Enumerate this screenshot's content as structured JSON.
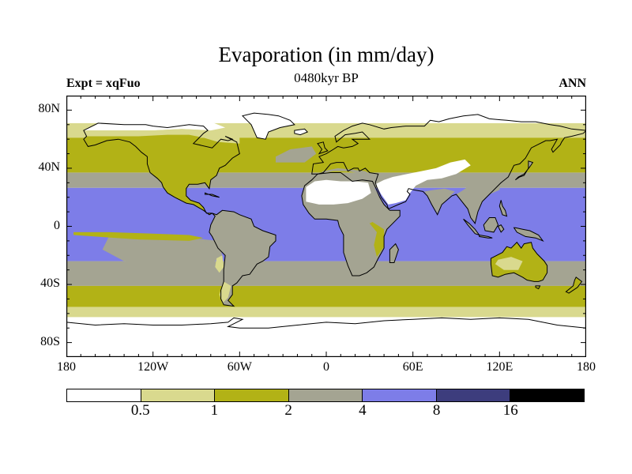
{
  "header": {
    "title": "Evaporation (in mm/day)",
    "subtitle": "0480kyr BP",
    "experiment_label": "Expt = xqFuo",
    "season_label": "ANN"
  },
  "chart_data": {
    "type": "heatmap",
    "subtype": "filled-contour-world-map",
    "title": "Evaporation (in mm/day)",
    "subtitle": "0480kyr BP",
    "experiment": "xqFuo",
    "season": "ANN",
    "projection": "equirectangular",
    "lon_range": [
      -180,
      180
    ],
    "lat_range": [
      -90,
      90
    ],
    "units": "mm/day",
    "x_ticks": [
      {
        "lon": -180,
        "label": "180"
      },
      {
        "lon": -120,
        "label": "120W"
      },
      {
        "lon": -60,
        "label": "60W"
      },
      {
        "lon": 0,
        "label": "0"
      },
      {
        "lon": 60,
        "label": "60E"
      },
      {
        "lon": 120,
        "label": "120E"
      },
      {
        "lon": 180,
        "label": "180"
      }
    ],
    "y_ticks": [
      {
        "lat": 80,
        "label": "80N"
      },
      {
        "lat": 40,
        "label": "40N"
      },
      {
        "lat": 0,
        "label": "0"
      },
      {
        "lat": -40,
        "label": "40S"
      },
      {
        "lat": -80,
        "label": "80S"
      }
    ],
    "minor_tick_deg": 10,
    "x_major_tick_deg": 60,
    "y_major_tick_deg": 40,
    "colorbar": {
      "boundary_labels": [
        "0.5",
        "1",
        "2",
        "4",
        "8",
        "16"
      ],
      "segment_colors": [
        "white",
        "pale",
        "olive",
        "gray",
        "blue",
        "navy",
        "black"
      ],
      "palette": {
        "white": "#ffffff",
        "pale": "#d9d98e",
        "olive": "#b2b216",
        "gray": "#a4a492",
        "blue": "#7d7de8",
        "navy": "#3d3d7d",
        "black": "#000000"
      }
    },
    "zonal_bands": [
      {
        "lat_from": 90,
        "lat_to": 71,
        "color": "white"
      },
      {
        "lat_from": 71,
        "lat_to": 61,
        "color": "pale"
      },
      {
        "lat_from": 61,
        "lat_to": 37,
        "color": "olive"
      },
      {
        "lat_from": 37,
        "lat_to": 26.5,
        "color": "gray"
      },
      {
        "lat_from": 26.5,
        "lat_to": -24,
        "color": "blue"
      },
      {
        "lat_from": -24,
        "lat_to": -41,
        "color": "gray"
      },
      {
        "lat_from": -41,
        "lat_to": -55.5,
        "color": "olive"
      },
      {
        "lat_from": -55.5,
        "lat_to": -62.5,
        "color": "pale"
      },
      {
        "lat_from": -62.5,
        "lat_to": -90,
        "color": "white"
      }
    ],
    "ocean_features": [
      {
        "name": "se-pacific-gray",
        "color": "gray",
        "polygon": [
          [
            -150,
            -6
          ],
          [
            -120,
            -6
          ],
          [
            -95,
            -8
          ],
          [
            -75,
            -10
          ],
          [
            -72,
            -20
          ],
          [
            -80,
            -26
          ],
          [
            -110,
            -27
          ],
          [
            -140,
            -24
          ],
          [
            -155,
            -16
          ],
          [
            -150,
            -6
          ]
        ]
      },
      {
        "name": "equatorial-pacific-olive-tongue",
        "color": "olive",
        "polygon": [
          [
            -175,
            -4
          ],
          [
            -150,
            -4
          ],
          [
            -120,
            -5
          ],
          [
            -95,
            -6
          ],
          [
            -85,
            -8
          ],
          [
            -95,
            -10
          ],
          [
            -130,
            -9
          ],
          [
            -160,
            -7
          ],
          [
            -175,
            -6
          ],
          [
            -175,
            -4
          ]
        ]
      },
      {
        "name": "north-atlantic-gray",
        "color": "gray",
        "polygon": [
          [
            -35,
            44
          ],
          [
            -15,
            44
          ],
          [
            -7,
            50
          ],
          [
            -10,
            55
          ],
          [
            -25,
            53
          ],
          [
            -35,
            48
          ],
          [
            -35,
            44
          ]
        ]
      },
      {
        "name": "chile-coast-pale",
        "color": "pale",
        "polygon": [
          [
            -76,
            -22
          ],
          [
            -72,
            -20
          ],
          [
            -71,
            -28
          ],
          [
            -74,
            -32
          ],
          [
            -77,
            -28
          ],
          [
            -76,
            -22
          ]
        ]
      }
    ],
    "regional_patches": [
      {
        "name": "sahara-white",
        "color": "white",
        "polygon": [
          [
            -14,
            17
          ],
          [
            -14,
            27
          ],
          [
            -8,
            31
          ],
          [
            0,
            32
          ],
          [
            10,
            31
          ],
          [
            20,
            31
          ],
          [
            29,
            30
          ],
          [
            31,
            23
          ],
          [
            25,
            19
          ],
          [
            15,
            16
          ],
          [
            5,
            15
          ],
          [
            -5,
            15
          ],
          [
            -14,
            17
          ]
        ]
      },
      {
        "name": "arabia-central-asia-white",
        "color": "white",
        "polygon": [
          [
            34,
            29
          ],
          [
            38,
            22
          ],
          [
            43,
            15
          ],
          [
            48,
            16
          ],
          [
            55,
            18
          ],
          [
            58,
            23
          ],
          [
            62,
            28
          ],
          [
            70,
            32
          ],
          [
            80,
            33
          ],
          [
            90,
            36
          ],
          [
            100,
            42
          ],
          [
            96,
            46
          ],
          [
            86,
            44
          ],
          [
            76,
            40
          ],
          [
            66,
            38
          ],
          [
            56,
            36
          ],
          [
            46,
            34
          ],
          [
            40,
            32
          ],
          [
            34,
            29
          ]
        ]
      },
      {
        "name": "east-africa-olive",
        "color": "olive",
        "polygon": [
          [
            32,
            3
          ],
          [
            40,
            -2
          ],
          [
            40,
            -14
          ],
          [
            35,
            -21
          ],
          [
            33,
            -13
          ],
          [
            35,
            -4
          ],
          [
            30,
            2
          ],
          [
            32,
            3
          ]
        ]
      },
      {
        "name": "patagonia-pale",
        "color": "pale",
        "polygon": [
          [
            -71,
            -38
          ],
          [
            -66,
            -41
          ],
          [
            -68,
            -49
          ],
          [
            -72,
            -53
          ],
          [
            -74,
            -47
          ],
          [
            -72,
            -40
          ],
          [
            -71,
            -38
          ]
        ]
      },
      {
        "name": "australia-interior-pale",
        "color": "pale",
        "polygon": [
          [
            119,
            -23
          ],
          [
            128,
            -21
          ],
          [
            136,
            -24
          ],
          [
            133,
            -30
          ],
          [
            123,
            -30
          ],
          [
            117,
            -26
          ],
          [
            119,
            -23
          ]
        ]
      },
      {
        "name": "india-gray",
        "color": "gray",
        "polygon": [
          [
            77,
            9
          ],
          [
            73,
            15
          ],
          [
            70,
            21
          ],
          [
            68,
            24
          ],
          [
            74,
            25
          ],
          [
            82,
            26
          ],
          [
            89,
            24
          ],
          [
            86,
            21
          ],
          [
            80,
            15
          ],
          [
            77,
            9
          ]
        ]
      },
      {
        "name": "southeast-asia-gray",
        "color": "gray",
        "polygon": [
          [
            90,
            22
          ],
          [
            94,
            17
          ],
          [
            98,
            12
          ],
          [
            100,
            5
          ],
          [
            103,
            3
          ],
          [
            105,
            10
          ],
          [
            108,
            17
          ],
          [
            113,
            22
          ],
          [
            120,
            25
          ],
          [
            121,
            30
          ],
          [
            110,
            31
          ],
          [
            100,
            29
          ],
          [
            95,
            25
          ],
          [
            90,
            22
          ]
        ]
      },
      {
        "name": "north-america-subarctic-pale",
        "color": "pale",
        "polygon": [
          [
            -168,
            62
          ],
          [
            -150,
            62
          ],
          [
            -130,
            62
          ],
          [
            -110,
            63
          ],
          [
            -95,
            63
          ],
          [
            -85,
            61
          ],
          [
            -75,
            58
          ],
          [
            -60,
            57
          ],
          [
            -60,
            62
          ],
          [
            -80,
            66
          ],
          [
            -100,
            67
          ],
          [
            -120,
            66
          ],
          [
            -140,
            66
          ],
          [
            -160,
            66
          ],
          [
            -168,
            66
          ],
          [
            -168,
            62
          ]
        ]
      },
      {
        "name": "north-america-arctic-white",
        "color": "white",
        "polygon": [
          [
            -168,
            66
          ],
          [
            -160,
            66
          ],
          [
            -140,
            66
          ],
          [
            -120,
            66
          ],
          [
            -100,
            67
          ],
          [
            -80,
            66
          ],
          [
            -70,
            68
          ],
          [
            -80,
            72
          ],
          [
            -100,
            73
          ],
          [
            -120,
            72
          ],
          [
            -140,
            71
          ],
          [
            -158,
            71
          ],
          [
            -168,
            66
          ]
        ]
      },
      {
        "name": "mediterranean-gray",
        "color": "gray",
        "polygon": [
          [
            -5,
            36
          ],
          [
            5,
            38
          ],
          [
            15,
            38
          ],
          [
            25,
            36
          ],
          [
            33,
            31
          ],
          [
            35,
            34
          ],
          [
            27,
            38
          ],
          [
            18,
            39
          ],
          [
            8,
            40
          ],
          [
            -2,
            38
          ],
          [
            -5,
            36
          ]
        ]
      },
      {
        "name": "red-sea-blue",
        "color": "blue",
        "polygon": [
          [
            33,
            27
          ],
          [
            36,
            22
          ],
          [
            41,
            15
          ],
          [
            43,
            12
          ],
          [
            41,
            14
          ],
          [
            37,
            20
          ],
          [
            34,
            26
          ],
          [
            33,
            27
          ]
        ]
      }
    ]
  }
}
